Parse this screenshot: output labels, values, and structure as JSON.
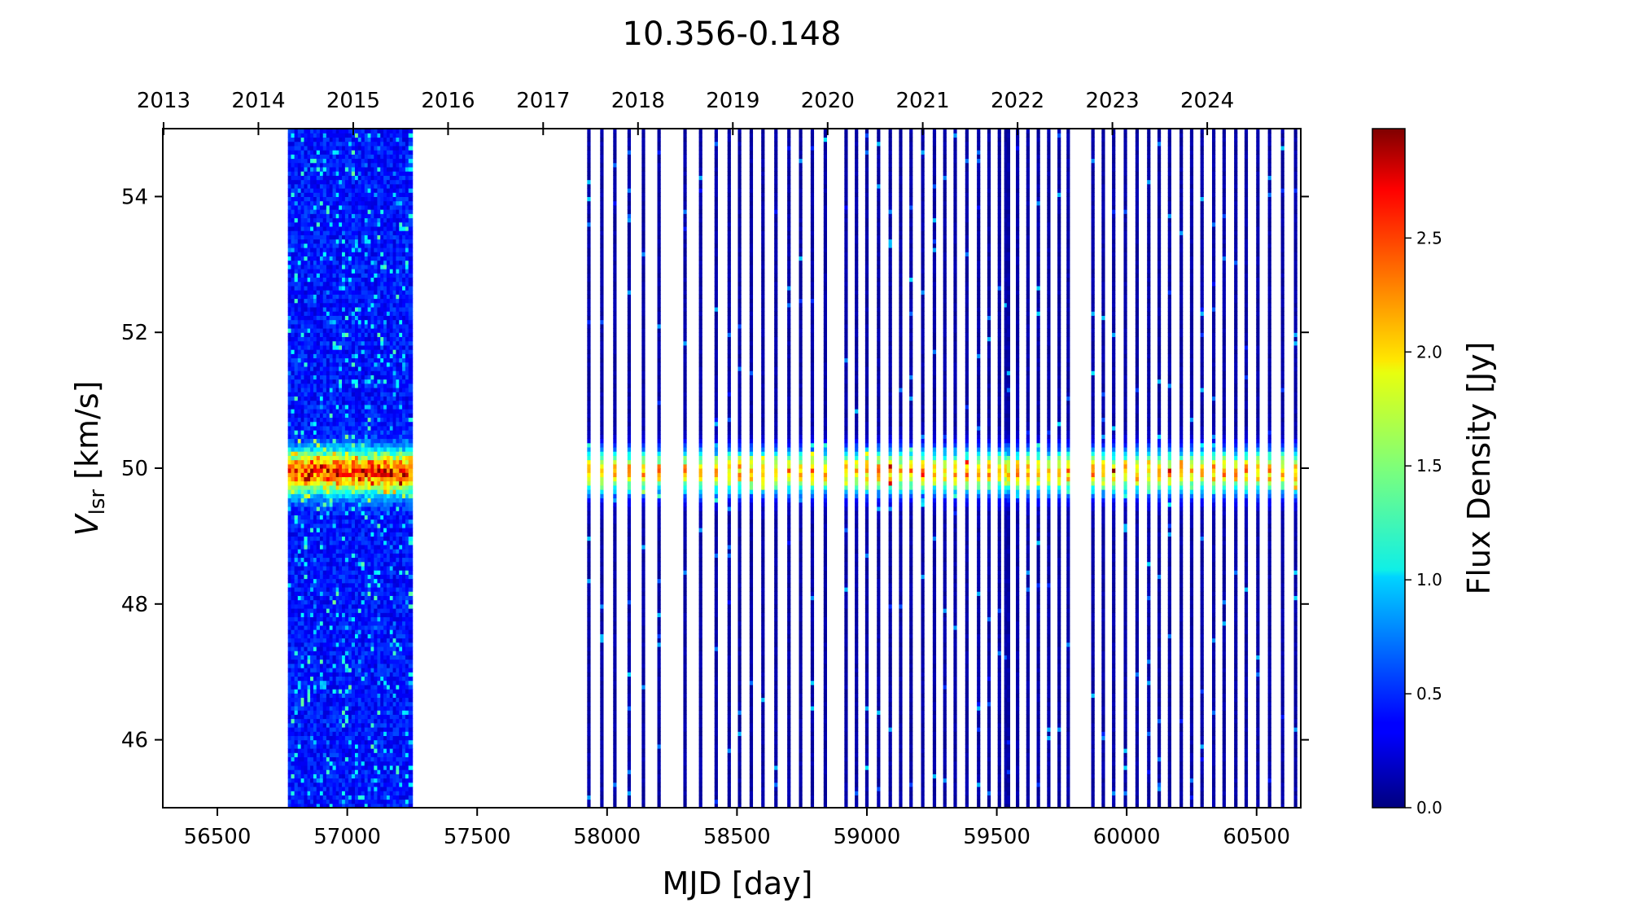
{
  "chart_data": {
    "type": "heatmap",
    "title": "10.356-0.148",
    "xlabel": "MJD [day]",
    "ylabel_main": "V",
    "ylabel_sub": "lsr",
    "ylabel_unit": " [km/s]",
    "colorbar_label": "Flux Density [Jy]",
    "colormap": "jet",
    "xlim": [
      56290,
      60670
    ],
    "ylim": [
      45.0,
      55.0
    ],
    "clim": [
      0.0,
      2.98
    ],
    "x_ticks": [
      56500,
      57000,
      57500,
      58000,
      58500,
      59000,
      59500,
      60000,
      60500
    ],
    "y_ticks": [
      46,
      48,
      50,
      52,
      54
    ],
    "top_axis": {
      "label_values": [
        "2013",
        "2014",
        "2015",
        "2016",
        "2017",
        "2018",
        "2019",
        "2020",
        "2021",
        "2022",
        "2023",
        "2024"
      ],
      "mjd_positions": [
        56293,
        56658,
        57023,
        57388,
        57754,
        58119,
        58484,
        58849,
        59215,
        59580,
        59945,
        60310
      ]
    },
    "colorbar_ticks": [
      0.0,
      0.5,
      1.0,
      1.5,
      2.0,
      2.5
    ],
    "emission_feature": {
      "velocity_center": 49.95,
      "velocity_width": 0.22,
      "peak_flux": 2.6
    },
    "observation_epochs_mjd": [
      56780,
      56792,
      56805,
      56818,
      56830,
      56842,
      56855,
      56866,
      56878,
      56890,
      56903,
      56915,
      56928,
      56940,
      56952,
      56965,
      56976,
      56988,
      57000,
      57013,
      57025,
      57038,
      57050,
      57062,
      57075,
      57087,
      57099,
      57111,
      57124,
      57136,
      57148,
      57160,
      57172,
      57184,
      57196,
      57208,
      57220,
      57232,
      57244,
      57930,
      57980,
      58030,
      58085,
      58140,
      58200,
      58300,
      58360,
      58420,
      58470,
      58510,
      58555,
      58600,
      58650,
      58700,
      58745,
      58790,
      58840,
      58920,
      58960,
      59000,
      59045,
      59090,
      59130,
      59170,
      59215,
      59260,
      59300,
      59340,
      59385,
      59430,
      59470,
      59510,
      59535,
      59545,
      59580,
      59620,
      59660,
      59700,
      59740,
      59775,
      59870,
      59910,
      59950,
      59995,
      60040,
      60085,
      60125,
      60165,
      60210,
      60250,
      60290,
      60335,
      60375,
      60420,
      60460,
      60505,
      60550,
      60600,
      60650
    ]
  }
}
